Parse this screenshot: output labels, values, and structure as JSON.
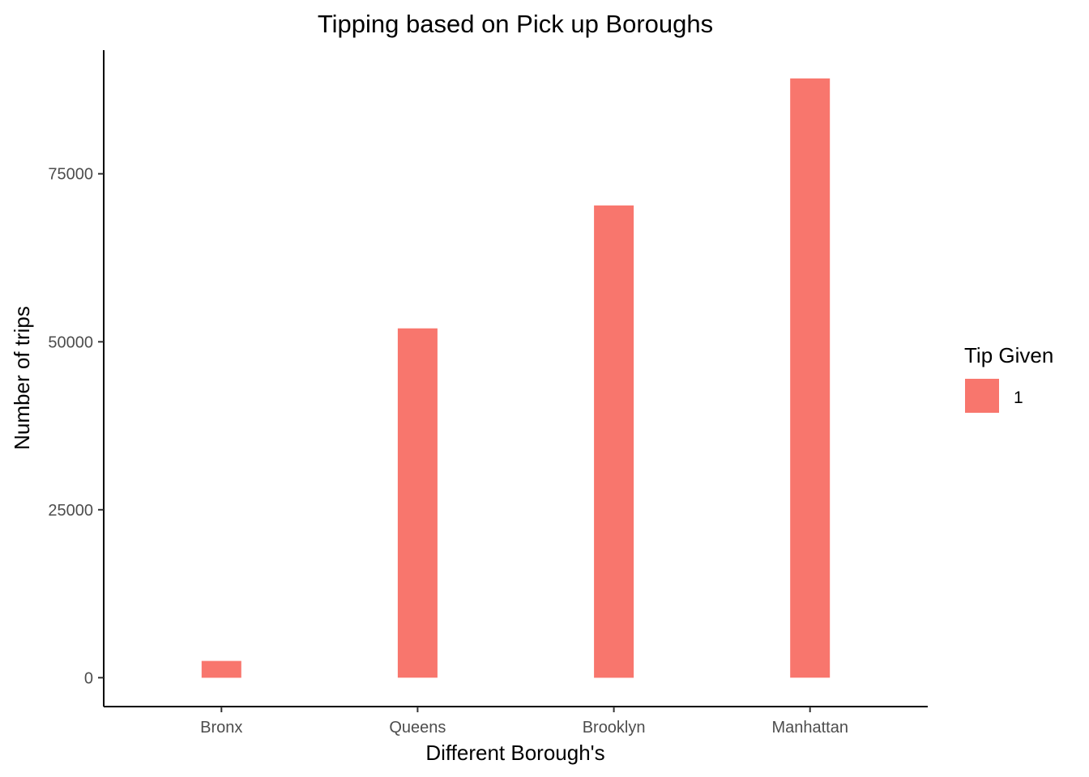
{
  "chart_data": {
    "type": "bar",
    "title": "Tipping based on Pick up Boroughs",
    "xlabel": "Different Borough's",
    "ylabel": "Number of trips",
    "categories": [
      "Bronx",
      "Queens",
      "Brooklyn",
      "Manhattan"
    ],
    "series": [
      {
        "name": "1",
        "values": [
          2500,
          52000,
          70300,
          89200
        ],
        "color": "#F8766D"
      }
    ],
    "ylim": [
      -4300,
      93400
    ],
    "yticks": [
      0,
      25000,
      50000,
      75000
    ],
    "ytick_labels": [
      "0",
      "25000",
      "50000",
      "75000"
    ],
    "grid": false,
    "legend": {
      "title": "Tip Given",
      "position": "right",
      "items": [
        {
          "label": "1",
          "color": "#F8766D"
        }
      ]
    }
  }
}
